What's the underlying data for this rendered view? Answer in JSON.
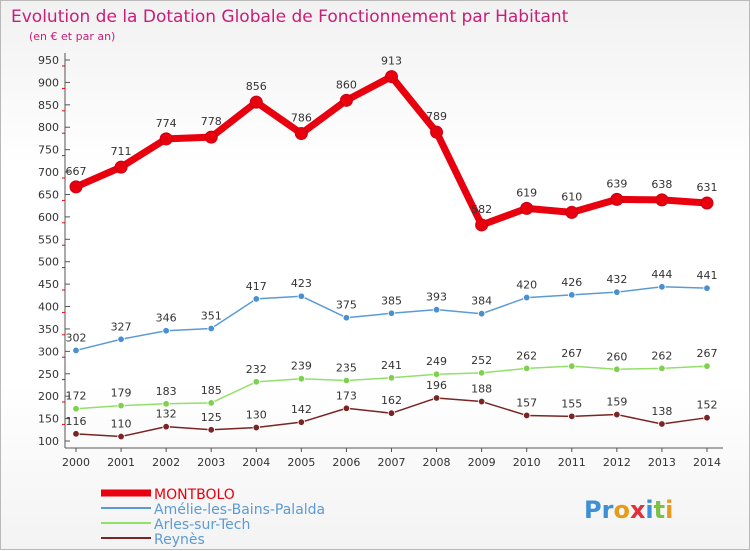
{
  "title": "Evolution de la Dotation Globale de Fonctionnement par Habitant",
  "subtitle": "(en € et par an)",
  "logo": "Proxiti",
  "chart_data": {
    "type": "line",
    "title": "Evolution de la Dotation Globale de Fonctionnement par Habitant",
    "subtitle": "(en € et par an)",
    "xlabel": "",
    "ylabel": "",
    "ylim": [
      100,
      950
    ],
    "yticks": [
      100,
      150,
      200,
      250,
      300,
      350,
      400,
      450,
      500,
      550,
      600,
      650,
      700,
      750,
      800,
      850,
      900,
      950
    ],
    "grid": false,
    "legend_position": "bottom-left",
    "x": [
      "2000",
      "2001",
      "2002",
      "2003",
      "2004",
      "2005",
      "2006",
      "2007",
      "2008",
      "2009",
      "2010",
      "2011",
      "2012",
      "2013",
      "2014"
    ],
    "series": [
      {
        "name": "MONTBOLO",
        "color": "#e8000e",
        "marker": "#e8000e",
        "width": 7,
        "values": [
          667,
          711,
          774,
          778,
          856,
          786,
          860,
          913,
          789,
          582,
          619,
          610,
          639,
          638,
          631
        ]
      },
      {
        "name": "Amélie-les-Bains-Palalda",
        "color": "#5b9bd5",
        "marker": "#4a8fd0",
        "width": 1.5,
        "values": [
          302,
          327,
          346,
          351,
          417,
          423,
          375,
          385,
          393,
          384,
          420,
          426,
          432,
          444,
          441
        ]
      },
      {
        "name": "Arles-sur-Tech",
        "color": "#92e06a",
        "marker": "#7ed14f",
        "width": 1.5,
        "values": [
          172,
          179,
          183,
          185,
          232,
          239,
          235,
          241,
          249,
          252,
          262,
          267,
          260,
          262,
          267
        ]
      },
      {
        "name": "Reynès",
        "color": "#7a2424",
        "marker": "#7a2424",
        "width": 1.5,
        "values": [
          116,
          110,
          132,
          125,
          130,
          142,
          173,
          162,
          196,
          188,
          157,
          155,
          159,
          138,
          152
        ]
      }
    ]
  }
}
